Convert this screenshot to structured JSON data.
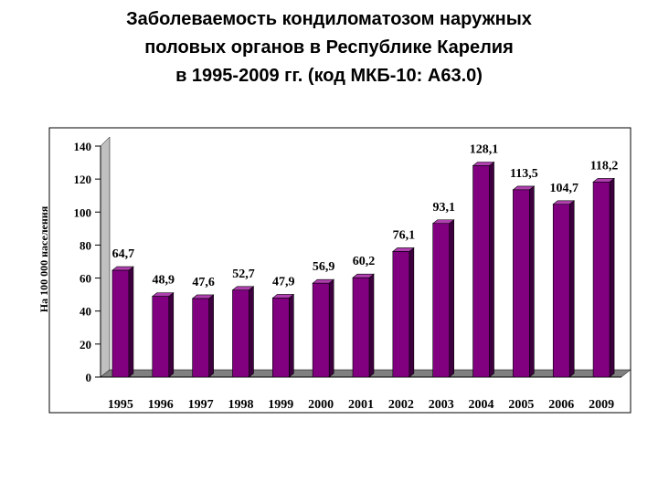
{
  "title_lines": [
    "Заболеваемость кондиломатозом наружных",
    "половых органов в Республике Карелия",
    "в 1995-2009 гг. (код МКБ-10: A63.0)"
  ],
  "colors": {
    "bar_front": "#800080",
    "bar_side": "#3f003f",
    "bar_top": "#b040b0",
    "wall": "#c0c0c0",
    "floor": "#808080",
    "frame": "#000000"
  },
  "chart_data": {
    "type": "bar",
    "style": "3d-column",
    "title": "Заболеваемость кондиломатозом наружных половых органов в Республике Карелия в 1995-2009 гг. (код МКБ-10: A63.0)",
    "ylabel": "На 100 000 населения",
    "xlabel": "",
    "ylim": [
      0,
      140
    ],
    "yticks": [
      0,
      20,
      40,
      60,
      80,
      100,
      120,
      140
    ],
    "grid": false,
    "legend": "none",
    "categories": [
      "1995",
      "1996",
      "1997",
      "1998",
      "1999",
      "2000",
      "2001",
      "2002",
      "2003",
      "2004",
      "2005",
      "2006",
      "2009"
    ],
    "values": [
      64.7,
      48.9,
      47.6,
      52.7,
      47.9,
      56.9,
      60.2,
      76.1,
      93.1,
      128.1,
      113.5,
      104.7,
      118.2
    ],
    "value_labels": [
      "64,7",
      "48,9",
      "47,6",
      "52,7",
      "47,9",
      "56,9",
      "60,2",
      "76,1",
      "93,1",
      "128,1",
      "113,5",
      "104,7",
      "118,2"
    ]
  }
}
